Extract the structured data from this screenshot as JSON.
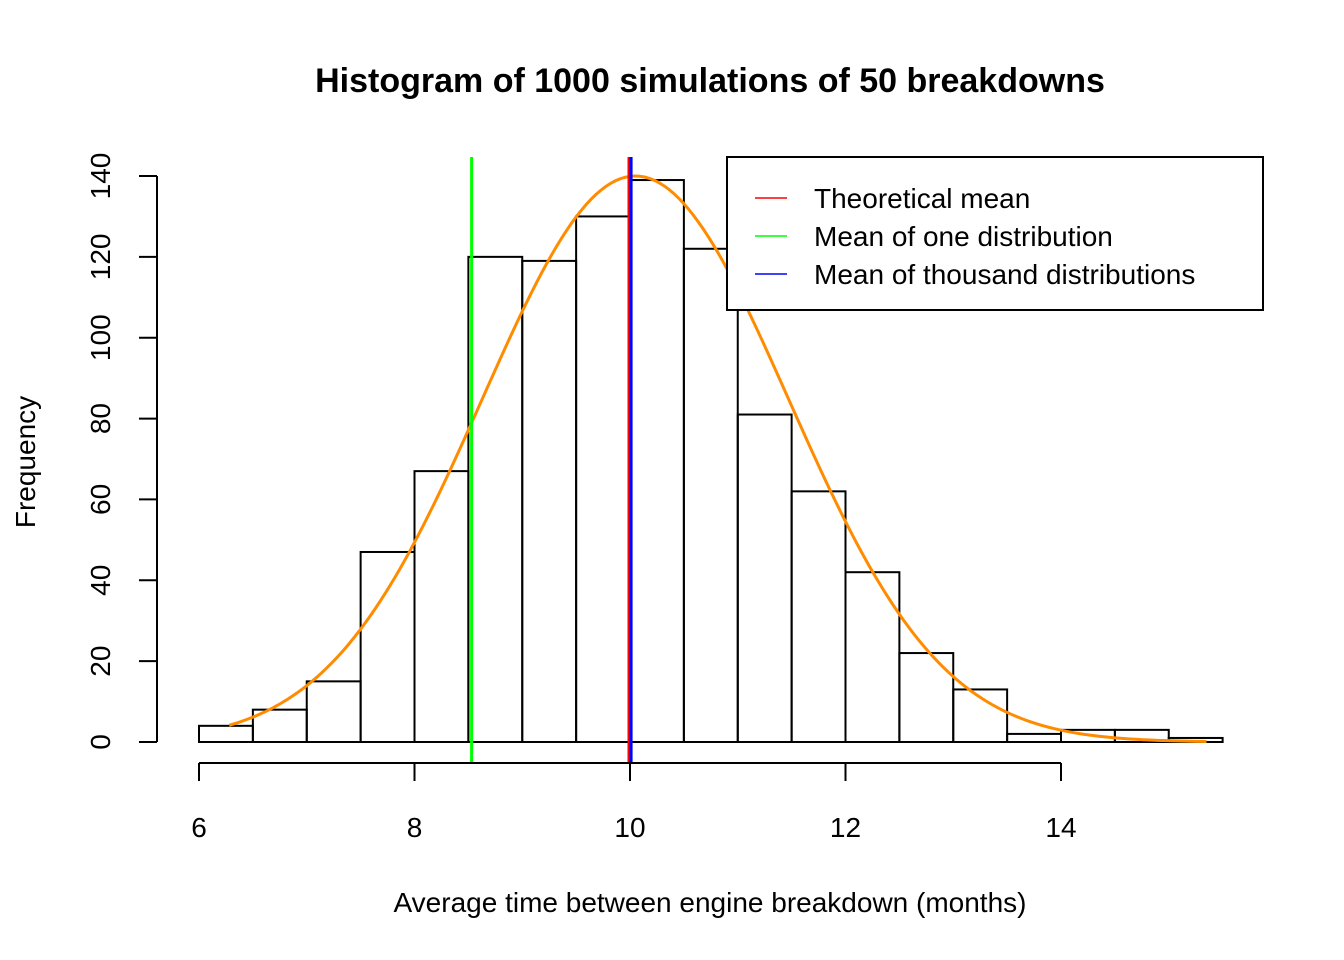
{
  "chart_data": {
    "type": "bar",
    "title": "Histogram of 1000 simulations of 50 breakdowns",
    "xlabel": "Average time between engine breakdown (months)",
    "ylabel": "Frequency",
    "xlim": [
      6,
      15.5
    ],
    "ylim": [
      0,
      140
    ],
    "x_ticks": [
      "6",
      "8",
      "10",
      "12",
      "14"
    ],
    "y_ticks": [
      "0",
      "20",
      "40",
      "60",
      "80",
      "100",
      "120",
      "140"
    ],
    "bins": [
      {
        "from": 6.0,
        "to": 6.5,
        "count": 4
      },
      {
        "from": 6.5,
        "to": 7.0,
        "count": 8
      },
      {
        "from": 7.0,
        "to": 7.5,
        "count": 15
      },
      {
        "from": 7.5,
        "to": 8.0,
        "count": 47
      },
      {
        "from": 8.0,
        "to": 8.5,
        "count": 67
      },
      {
        "from": 8.5,
        "to": 9.0,
        "count": 120
      },
      {
        "from": 9.0,
        "to": 9.5,
        "count": 119
      },
      {
        "from": 9.5,
        "to": 10.0,
        "count": 130
      },
      {
        "from": 10.0,
        "to": 10.5,
        "count": 139
      },
      {
        "from": 10.5,
        "to": 11.0,
        "count": 122
      },
      {
        "from": 11.0,
        "to": 11.5,
        "count": 81
      },
      {
        "from": 11.5,
        "to": 12.0,
        "count": 62
      },
      {
        "from": 12.0,
        "to": 12.5,
        "count": 42
      },
      {
        "from": 12.5,
        "to": 13.0,
        "count": 22
      },
      {
        "from": 13.0,
        "to": 13.5,
        "count": 13
      },
      {
        "from": 13.5,
        "to": 14.0,
        "count": 2
      },
      {
        "from": 14.0,
        "to": 14.5,
        "count": 3
      },
      {
        "from": 14.5,
        "to": 15.0,
        "count": 3
      },
      {
        "from": 15.0,
        "to": 15.5,
        "count": 1
      }
    ],
    "density_curve": {
      "color": "#ff8c00",
      "mean": 10.05,
      "sd": 1.42,
      "peak": 140,
      "x_range": [
        6.28,
        15.35
      ]
    },
    "vertical_lines": [
      {
        "name": "Theoretical mean",
        "x": 10.0,
        "color": "#ff0000"
      },
      {
        "name": "Mean of one distribution",
        "x": 8.53,
        "color": "#00ff00"
      },
      {
        "name": "Mean of thousand distributions",
        "x": 10.01,
        "color": "#0000ff"
      }
    ],
    "legend": {
      "position": "top-right",
      "entries": [
        {
          "label": "Theoretical mean",
          "color": "#ff0000"
        },
        {
          "label": "Mean of one distribution",
          "color": "#00ff00"
        },
        {
          "label": "Mean of thousand distributions",
          "color": "#0000ff"
        }
      ]
    },
    "grid": false
  }
}
